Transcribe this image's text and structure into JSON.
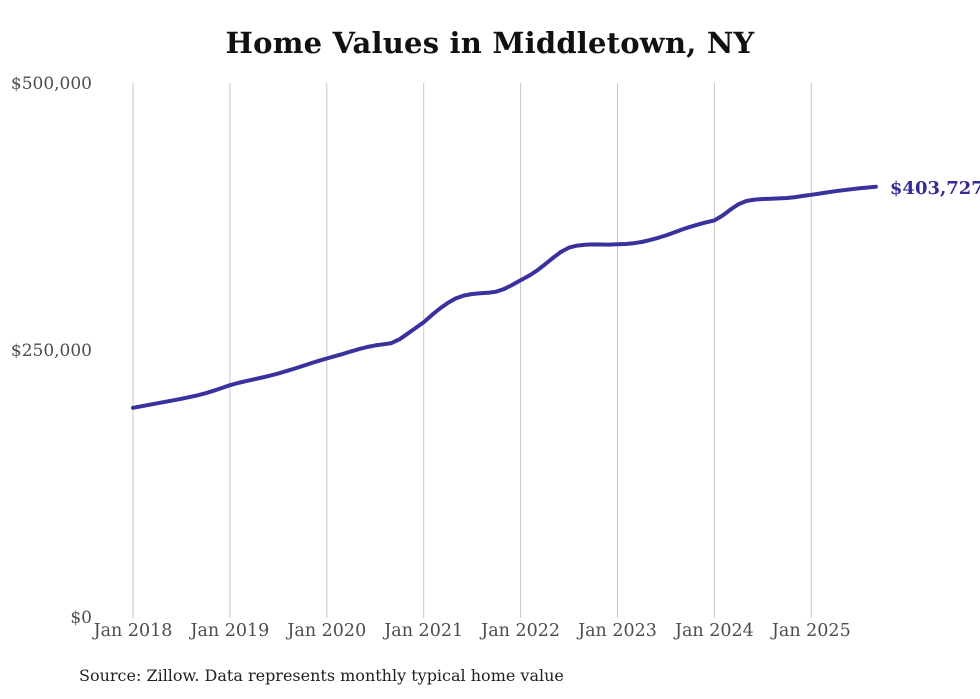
{
  "title": "Home Values in Middletown, NY",
  "source_note": "Source: Zillow. Data represents monthly typical home value",
  "colors": {
    "line": "#39319d",
    "end_label": "#352d94",
    "grid": "#c6c6c6",
    "axis_text": "#4d4d4d",
    "title_text": "#111111",
    "source_text": "#222222",
    "background": "#ffffff"
  },
  "chart_data": {
    "type": "line",
    "title": "Home Values in Middletown, NY",
    "xlabel": "",
    "ylabel": "",
    "ylim": [
      0,
      500000
    ],
    "grid": "vertical-only",
    "legend_position": "none",
    "x_tick_labels": [
      "Jan 2018",
      "Jan 2019",
      "Jan 2020",
      "Jan 2021",
      "Jan 2022",
      "Jan 2023",
      "Jan 2024",
      "Jan 2025"
    ],
    "y_tick_labels": [
      "$0",
      "$250,000",
      "$500,000"
    ],
    "end_label": "$403,727",
    "series": [
      {
        "name": "Typical home value (USD)",
        "frequency": "monthly",
        "start_month": "2018-01",
        "end_month": "2025-09",
        "values": [
          196800,
          198200,
          199600,
          201000,
          202400,
          203800,
          205200,
          206800,
          208500,
          210500,
          212800,
          215400,
          218000,
          220000,
          221800,
          223500,
          225200,
          227000,
          229000,
          231200,
          233500,
          236000,
          238400,
          240800,
          243000,
          245100,
          247300,
          249600,
          251800,
          253700,
          255200,
          256300,
          257400,
          261000,
          266200,
          271500,
          277000,
          283600,
          289800,
          295000,
          299300,
          302000,
          303400,
          304000,
          304500,
          305600,
          308200,
          312000,
          316200,
          320300,
          325200,
          331000,
          337200,
          342800,
          346800,
          348700,
          349500,
          349800,
          349700,
          349600,
          349900,
          350200,
          350900,
          352100,
          353800,
          355900,
          358200,
          361000,
          363800,
          366300,
          368500,
          370500,
          372300,
          376800,
          382500,
          387500,
          390500,
          391800,
          392300,
          392600,
          392900,
          393300,
          394100,
          395200,
          396300,
          397400,
          398500,
          399600,
          400600,
          401500,
          402300,
          403100,
          403727
        ]
      }
    ]
  }
}
